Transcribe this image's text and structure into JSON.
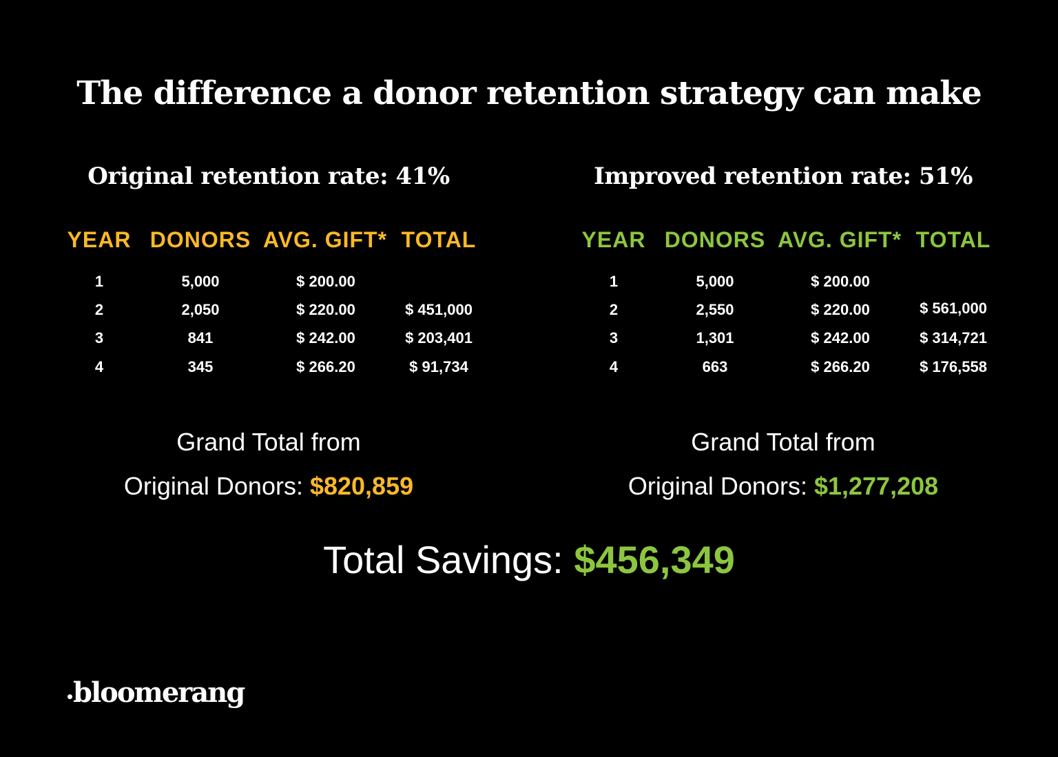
{
  "title": "The difference a donor retention strategy can make",
  "colors": {
    "original": "#FBB829",
    "improved": "#8CC63F",
    "background": "#000000",
    "text": "#FFFFFF"
  },
  "headers": [
    "YEAR",
    "DONORS",
    "AVG. GIFT*",
    "TOTAL"
  ],
  "original": {
    "rate_label": "Original retention rate: 41%",
    "rows": [
      {
        "year": "1",
        "donors": "5,000",
        "gift": "$ 200.00",
        "total": ""
      },
      {
        "year": "2",
        "donors": "2,050",
        "gift": "$ 220.00",
        "total": "$ 451,000"
      },
      {
        "year": "3",
        "donors": "841",
        "gift": "$ 242.00",
        "total": "$ 203,401"
      },
      {
        "year": "4",
        "donors": "345",
        "gift": "$ 266.20",
        "total": "$ 91,734"
      }
    ],
    "grand_line1": "Grand Total from",
    "grand_line2": "Original Donors: ",
    "grand_amount": "$820,859"
  },
  "improved": {
    "rate_label": "Improved retention rate: 51%",
    "rows": [
      {
        "year": "1",
        "donors": "5,000",
        "gift": "$ 200.00",
        "total": ""
      },
      {
        "year": "2",
        "donors": "2,550",
        "gift": "$ 220.00",
        "total": "$ 561,000"
      },
      {
        "year": "3",
        "donors": "1,301",
        "gift": "$ 242.00",
        "total": "$ 314,721"
      },
      {
        "year": "4",
        "donors": "663",
        "gift": "$ 266.20",
        "total": "$ 176,558"
      }
    ],
    "grand_line1": "Grand Total from",
    "grand_line2": "Original Donors: ",
    "grand_amount": "$1,277,208"
  },
  "savings_label": "Total Savings: ",
  "savings_amount": "$456,349",
  "logo_text": "bloomerang"
}
